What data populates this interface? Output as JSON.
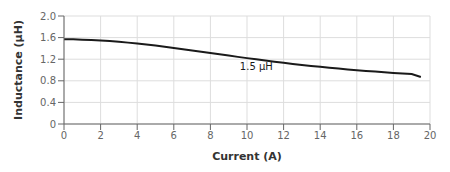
{
  "chart_data": {
    "type": "line",
    "xlabel": "Current (A)",
    "ylabel": "Inductance (μH)",
    "x": [
      0,
      0.5,
      1,
      1.5,
      2,
      2.5,
      3,
      3.5,
      4,
      4.5,
      5,
      5.5,
      6,
      6.5,
      7,
      7.5,
      8,
      8.5,
      9,
      9.5,
      10,
      10.5,
      11,
      11.5,
      12,
      12.5,
      13,
      13.5,
      14,
      14.5,
      15,
      15.5,
      16,
      16.5,
      17,
      17.5,
      18,
      18.5,
      19,
      19.5
    ],
    "values": [
      1.57,
      1.568,
      1.562,
      1.555,
      1.546,
      1.535,
      1.522,
      1.507,
      1.49,
      1.472,
      1.452,
      1.431,
      1.409,
      1.386,
      1.363,
      1.339,
      1.315,
      1.291,
      1.267,
      1.243,
      1.22,
      1.197,
      1.175,
      1.154,
      1.133,
      1.113,
      1.094,
      1.076,
      1.059,
      1.042,
      1.026,
      1.011,
      0.997,
      0.983,
      0.97,
      0.958,
      0.946,
      0.935,
      0.924,
      0.87
    ],
    "color": "#1a1a1a",
    "xlim": [
      0,
      20
    ],
    "ylim": [
      0,
      2.0
    ],
    "xticks": [
      0,
      2,
      4,
      6,
      8,
      10,
      12,
      14,
      16,
      18,
      20
    ],
    "yticks": [
      0,
      0.4,
      0.8,
      1.2,
      1.6,
      {
        "value": 2.0,
        "label": "2.0"
      }
    ],
    "grid": true,
    "annotations": [
      {
        "text": "1.5 μH",
        "x": 9.5,
        "y": 1.07
      }
    ]
  }
}
